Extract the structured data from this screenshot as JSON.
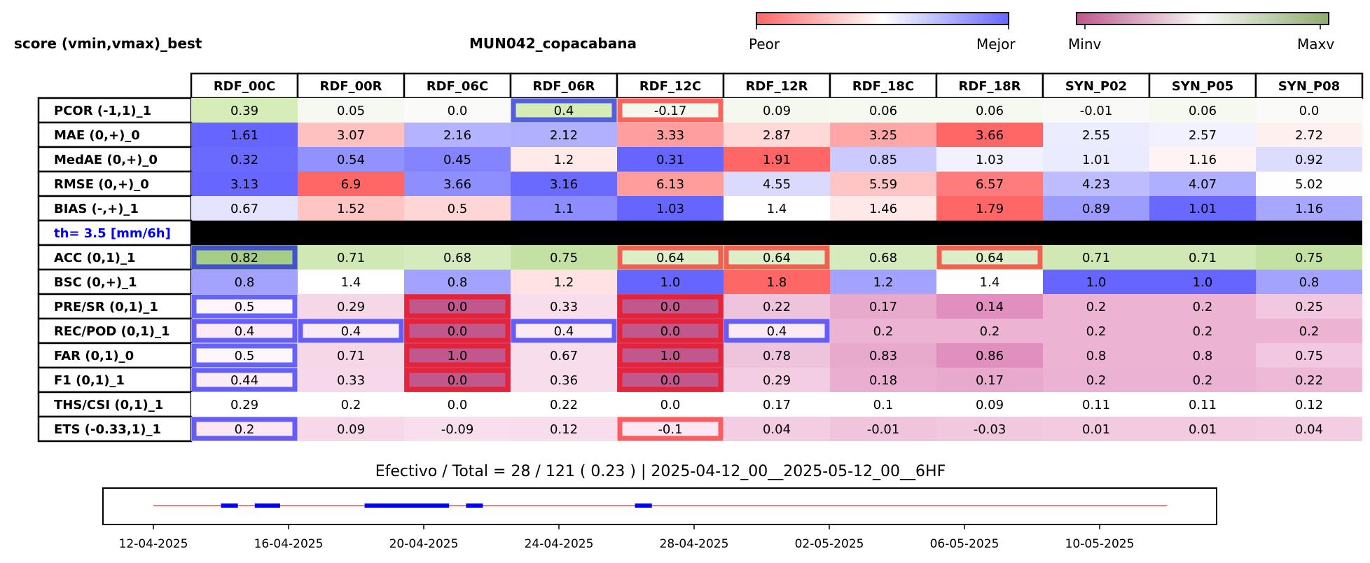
{
  "header": {
    "left_title": "score (vmin,vmax)_best",
    "center_title": "MUN042_copacabana"
  },
  "legend": {
    "score_bar": {
      "left_label": "Peor",
      "right_label": "Mejor",
      "colors": [
        "#ff6666",
        "#ffffff",
        "#6666ff"
      ]
    },
    "minmax_bar": {
      "left_label": "Minv",
      "right_label": "Maxv",
      "colors": [
        "#c0578d",
        "#f7f7f7",
        "#8fad6b"
      ]
    }
  },
  "colors": {
    "threshold_label": "#0000ff",
    "threshold_band": "#000000",
    "highlight_best": "#0000ff",
    "highlight_worst": "#ff0000",
    "timeline_base": "#f08080",
    "timeline_effective": "#0000ff"
  },
  "chart_data": [
    {
      "type": "heatmap",
      "columns": [
        "RDF_00C",
        "RDF_00R",
        "RDF_06C",
        "RDF_06R",
        "RDF_12C",
        "RDF_12R",
        "RDF_18C",
        "RDF_18R",
        "SYN_P02",
        "SYN_P05",
        "SYN_P08"
      ],
      "rows": [
        {
          "label": "PCOR (-1,1)_1",
          "values": [
            "0.39",
            "0.05",
            "0.0",
            "0.4",
            "-0.17",
            "0.09",
            "0.06",
            "0.06",
            "-0.01",
            "0.06",
            "0.0"
          ],
          "colors": [
            "#d7edb8",
            "#f6f9f1",
            "#fafbf8",
            "#d5ecb5",
            "#f3f7ec",
            "#f4f8ee",
            "#f5f9f0",
            "#f5f9f0",
            "#f9faf7",
            "#f5f9f0",
            "#fafbf8"
          ],
          "best": [
            3
          ],
          "worst": [
            4
          ]
        },
        {
          "label": "MAE (0,+)_0",
          "values": [
            "1.61",
            "3.07",
            "2.16",
            "2.12",
            "3.33",
            "2.87",
            "3.25",
            "3.66",
            "2.55",
            "2.57",
            "2.72"
          ],
          "colors": [
            "#6666ff",
            "#ffc0c0",
            "#b3b3ff",
            "#b0b0ff",
            "#ff9e9e",
            "#ffd8d8",
            "#ffa6a6",
            "#ff6666",
            "#ececff",
            "#f1f1ff",
            "#fff0f0"
          ],
          "best": [],
          "worst": []
        },
        {
          "label": "MedAE (0,+)_0",
          "values": [
            "0.32",
            "0.54",
            "0.45",
            "1.2",
            "0.31",
            "1.91",
            "0.85",
            "1.03",
            "1.01",
            "1.16",
            "0.92"
          ],
          "colors": [
            "#6a6aff",
            "#9292ff",
            "#8484ff",
            "#ffeaea",
            "#6666ff",
            "#ff6666",
            "#cacaff",
            "#f1f1ff",
            "#ebebff",
            "#fff4f4",
            "#dcdcff"
          ],
          "best": [],
          "worst": []
        },
        {
          "label": "RMSE (0,+)_0",
          "values": [
            "3.13",
            "6.9",
            "3.66",
            "3.16",
            "6.13",
            "4.55",
            "5.59",
            "6.57",
            " 4.23",
            "4.07",
            "5.02"
          ],
          "colors": [
            "#6767ff",
            "#ff6666",
            "#8e8eff",
            "#6a6aff",
            "#ff9c9c",
            "#dadaff",
            "#ffc4c4",
            "#ff7c7c",
            "#bcbcff",
            "#afafff",
            "#fefeff"
          ],
          "best": [],
          "worst": []
        },
        {
          "label": "BIAS (-,+)_1",
          "values": [
            "0.67",
            "1.52",
            "0.5",
            "1.1",
            "1.03",
            "1.4",
            "1.46",
            "1.79",
            "0.89",
            "1.01",
            "1.16"
          ],
          "colors": [
            "#e4e4ff",
            "#ffc4c4",
            "#ffd6d6",
            "#8d8dff",
            "#6666ff",
            "#ffffff",
            "#ffe8e8",
            "#ff6666",
            "#9c9cff",
            "#6969ff",
            "#a7a7ff"
          ],
          "best": [],
          "worst": []
        },
        {
          "label": "th= 3.5 [mm/6h]",
          "separator": true
        },
        {
          "label": "ACC (0,1)_1",
          "values": [
            "0.82",
            "0.71",
            "0.68",
            "0.75",
            "0.64",
            "0.64",
            "0.68",
            "0.64",
            "0.71",
            "0.71",
            "0.75"
          ],
          "colors": [
            "#a6cd85",
            "#d0e8b3",
            "#d6ebbd",
            "#c3e1a2",
            "#ddefc8",
            "#ddefc8",
            "#d6ebbd",
            "#ddefc8",
            "#d0e8b3",
            "#d0e8b3",
            "#c3e1a2"
          ],
          "best": [
            0
          ],
          "worst": [
            4,
            5,
            7
          ]
        },
        {
          "label": "BSC (0,+)_1",
          "values": [
            "0.8",
            "1.4",
            "0.8",
            "1.2",
            "1.0",
            "1.8",
            "1.2",
            "1.4",
            "1.0",
            "1.0",
            "0.8"
          ],
          "colors": [
            "#a3a3ff",
            "#ffffff",
            "#a3a3ff",
            "#ffe2e2",
            "#6666ff",
            "#ff6666",
            "#a3a3ff",
            "#ffffff",
            "#6666ff",
            "#6666ff",
            "#a3a3ff"
          ],
          "best": [],
          "worst": []
        },
        {
          "label": "PRE/SR (0,1)_1",
          "values": [
            "0.5",
            "0.29",
            "0.0",
            "0.33",
            "0.0",
            "0.22",
            "0.17",
            "0.14",
            "0.2",
            "0.2",
            "0.25"
          ],
          "colors": [
            "#fff6fb",
            "#f5d7e8",
            "#c0578d",
            "#f8dded",
            "#c0578d",
            "#eec4dc",
            "#e7aacc",
            "#e08fbf",
            "#ecb3d3",
            "#ecb3d3",
            "#f1c8e0"
          ],
          "best": [
            0
          ],
          "worst": [
            2,
            4
          ]
        },
        {
          "label": "REC/POD (0,1)_1",
          "values": [
            "0.4",
            "0.4",
            "0.0",
            "0.4",
            "0.0",
            "0.4",
            "0.2",
            "0.2",
            "0.2",
            "0.2",
            "0.2"
          ],
          "colors": [
            "#fbe9f3",
            "#fbe9f3",
            "#c0578d",
            "#fbe9f3",
            "#c0578d",
            "#fbe9f3",
            "#ecb3d3",
            "#ecb3d3",
            "#ecb3d3",
            "#ecb3d3",
            "#ecb3d3"
          ],
          "best": [
            0,
            1,
            3,
            5
          ],
          "worst": [
            2,
            4
          ]
        },
        {
          "label": "FAR (0,1)_0",
          "values": [
            "0.5",
            "0.71",
            "1.0",
            "0.67",
            "1.0",
            "0.78",
            "0.83",
            "0.86",
            "0.8",
            "0.8",
            "0.75"
          ],
          "colors": [
            "#fff6fb",
            "#f5d7e8",
            "#c0578d",
            "#f8dded",
            "#c0578d",
            "#eec4dc",
            "#e7aacc",
            "#e08fbf",
            "#ecb3d3",
            "#ecb3d3",
            "#f1c8e0"
          ],
          "best": [
            0
          ],
          "worst": [
            2,
            4
          ]
        },
        {
          "label": "F1 (0,1)_1",
          "values": [
            "0.44",
            "0.33",
            "0.0",
            "0.36",
            "0.0",
            "0.29",
            "0.18",
            "0.17",
            "0.2",
            "0.2",
            "0.22"
          ],
          "colors": [
            "#fbebf4",
            "#f7d8ea",
            "#c0578d",
            "#f8ddec",
            "#c0578d",
            "#f3cde2",
            "#e9aed0",
            "#e7aacc",
            "#ebb2d3",
            "#ebb2d3",
            "#edb9d7"
          ],
          "best": [
            0
          ],
          "worst": [
            2,
            4
          ]
        },
        {
          "label": "THS/CSI (0,1)_1",
          "values": [
            "0.29",
            "0.2",
            "0.0",
            "0.22",
            "0.0",
            "0.17",
            "0.1",
            "0.09",
            "0.11",
            "0.11",
            "0.12"
          ],
          "colors": [
            "#ffffff",
            "#ffffff",
            "#ffffff",
            "#ffffff",
            "#ffffff",
            "#ffffff",
            "#ffffff",
            "#ffffff",
            "#ffffff",
            "#ffffff",
            "#ffffff"
          ],
          "best": [],
          "worst": []
        },
        {
          "label": "ETS (-0.33,1)_1",
          "values": [
            "0.2",
            "0.09",
            "-0.09",
            "0.12",
            "-0.1",
            "0.04",
            "-0.01",
            "-0.03",
            "0.01",
            "0.01",
            "0.04"
          ],
          "colors": [
            "#fde7f2",
            "#f7d8e9",
            "#f9dfed",
            "#f8ddec",
            "#fbe6f1",
            "#f3cde2",
            "#efc4dc",
            "#f1c9df",
            "#f2cbe1",
            "#f2cbe1",
            "#f3cde2"
          ],
          "best": [
            0
          ],
          "worst": [
            4
          ]
        }
      ]
    },
    {
      "type": "timeline",
      "title": "Efectivo / Total  =  28 / 121 ( 0.23 ) | 2025-04-12_00__2025-05-12_00__6HF",
      "x_start": "12-04-2025",
      "x_end": "12-05-2025",
      "tick_labels": [
        "12-04-2025",
        "16-04-2025",
        "20-04-2025",
        "24-04-2025",
        "28-04-2025",
        "02-05-2025",
        "06-05-2025",
        "10-05-2025"
      ],
      "tick_day_offsets": [
        0,
        4,
        8,
        12,
        16,
        20,
        24,
        28
      ],
      "total_span_days": 30,
      "effective_segments": [
        {
          "from": "14-04-2025 00",
          "to": "14-04-2025 12"
        },
        {
          "from": "15-04-2025 00",
          "to": "15-04-2025 18"
        },
        {
          "from": "18-04-2025 06",
          "to": "20-04-2025 18"
        },
        {
          "from": "21-04-2025 06",
          "to": "21-04-2025 18"
        },
        {
          "from": "26-04-2025 06",
          "to": "26-04-2025 18"
        }
      ]
    }
  ]
}
